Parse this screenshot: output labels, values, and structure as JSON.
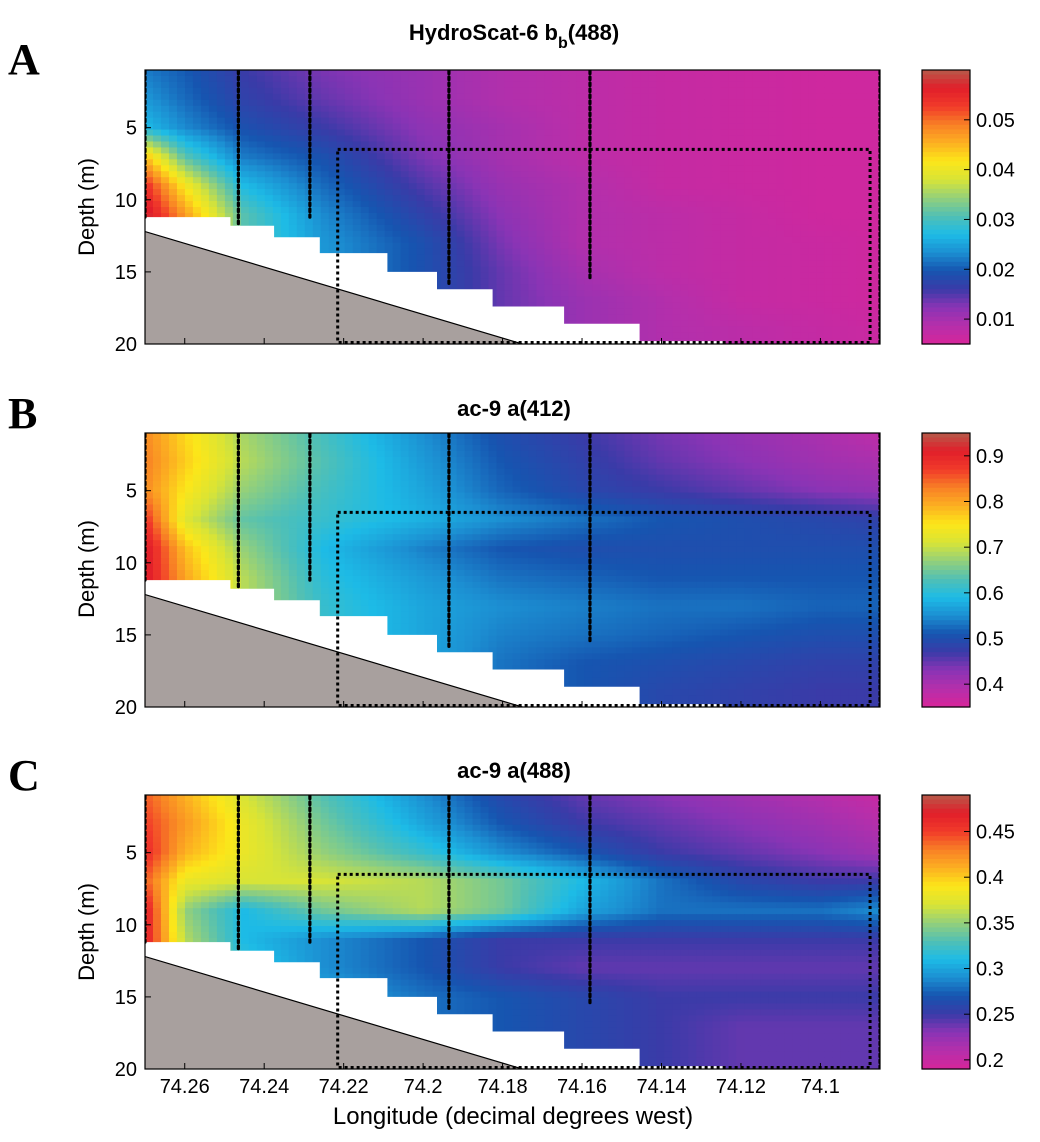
{
  "figure": {
    "xlabel": "Longitude (decimal degrees west)"
  },
  "chart_data": [
    {
      "type": "heatmap",
      "panel_label": "A",
      "title_main": "HydroScat-6   b",
      "title_sub": "b",
      "title_tail": "(488)",
      "ylabel": "Depth (m)",
      "xlabel": "",
      "xlim": [
        74.27,
        74.085
      ],
      "ylim": [
        20,
        1
      ],
      "y_ticks": [
        5,
        10,
        15,
        20
      ],
      "x_ticks": [
        74.26,
        74.24,
        74.22,
        74.2,
        74.18,
        74.16,
        74.14,
        74.12,
        74.1
      ],
      "x_tick_labels": [],
      "colorbar": {
        "range": [
          0.005,
          0.06
        ],
        "ticks": [
          0.01,
          0.02,
          0.03,
          0.04,
          0.05
        ],
        "tick_labels": [
          "0.01",
          "0.02",
          "0.03",
          "0.04",
          "0.05"
        ]
      },
      "grid_x": [
        74.27,
        74.26,
        74.245,
        74.225,
        74.2,
        74.18,
        74.16,
        74.14,
        74.12,
        74.1,
        74.085
      ],
      "grid_depth": [
        1,
        3,
        5,
        7,
        9,
        11,
        13,
        15,
        17,
        19,
        20
      ],
      "grid_values": [
        [
          0.022,
          0.02,
          0.016,
          0.013,
          0.011,
          0.009,
          0.008,
          0.007,
          0.0065,
          0.006,
          0.006
        ],
        [
          0.024,
          0.021,
          0.017,
          0.014,
          0.011,
          0.009,
          0.008,
          0.007,
          0.0065,
          0.006,
          0.006
        ],
        [
          0.027,
          0.023,
          0.019,
          0.016,
          0.012,
          0.01,
          0.008,
          0.007,
          0.0065,
          0.006,
          0.006
        ],
        [
          0.044,
          0.031,
          0.022,
          0.019,
          0.013,
          0.01,
          0.008,
          0.007,
          0.0065,
          0.006,
          0.006
        ],
        [
          0.054,
          0.041,
          0.027,
          0.021,
          0.015,
          0.011,
          0.009,
          0.007,
          0.0065,
          0.006,
          0.006
        ],
        [
          0.058,
          0.047,
          0.031,
          0.023,
          0.017,
          0.012,
          0.009,
          0.008,
          0.007,
          0.006,
          0.006
        ],
        [
          0.058,
          0.047,
          0.031,
          0.024,
          0.019,
          0.013,
          0.009,
          0.008,
          0.007,
          0.0065,
          0.006
        ],
        [
          0.058,
          0.047,
          0.031,
          0.024,
          0.019,
          0.014,
          0.01,
          0.008,
          0.007,
          0.0065,
          0.006
        ],
        [
          0.058,
          0.047,
          0.031,
          0.024,
          0.019,
          0.014,
          0.011,
          0.009,
          0.007,
          0.0065,
          0.006
        ],
        [
          0.058,
          0.047,
          0.031,
          0.024,
          0.019,
          0.014,
          0.011,
          0.009,
          0.008,
          0.007,
          0.0065
        ],
        [
          0.058,
          0.047,
          0.031,
          0.024,
          0.019,
          0.014,
          0.011,
          0.009,
          0.008,
          0.007,
          0.0065
        ]
      ]
    },
    {
      "type": "heatmap",
      "panel_label": "B",
      "title_main": "ac-9   a(412)",
      "title_sub": "",
      "title_tail": "",
      "ylabel": "Depth (m)",
      "xlabel": "",
      "xlim": [
        74.27,
        74.085
      ],
      "ylim": [
        20,
        1
      ],
      "y_ticks": [
        5,
        10,
        15,
        20
      ],
      "x_ticks": [
        74.26,
        74.24,
        74.22,
        74.2,
        74.18,
        74.16,
        74.14,
        74.12,
        74.1
      ],
      "x_tick_labels": [],
      "colorbar": {
        "range": [
          0.35,
          0.95
        ],
        "ticks": [
          0.4,
          0.5,
          0.6,
          0.7,
          0.8,
          0.9
        ],
        "tick_labels": [
          "0.4",
          "0.5",
          "0.6",
          "0.7",
          "0.8",
          "0.9"
        ]
      },
      "grid_x": [
        74.27,
        74.26,
        74.245,
        74.225,
        74.2,
        74.18,
        74.16,
        74.14,
        74.12,
        74.1,
        74.085
      ],
      "grid_depth": [
        1,
        3,
        5,
        7,
        9,
        11,
        13,
        15,
        17,
        19,
        20
      ],
      "grid_values": [
        [
          0.82,
          0.76,
          0.68,
          0.62,
          0.55,
          0.5,
          0.47,
          0.44,
          0.42,
          0.4,
          0.38
        ],
        [
          0.83,
          0.77,
          0.69,
          0.63,
          0.56,
          0.51,
          0.48,
          0.45,
          0.43,
          0.41,
          0.4
        ],
        [
          0.82,
          0.75,
          0.67,
          0.62,
          0.57,
          0.52,
          0.49,
          0.47,
          0.45,
          0.43,
          0.42
        ],
        [
          0.88,
          0.72,
          0.64,
          0.61,
          0.58,
          0.55,
          0.53,
          0.51,
          0.5,
          0.49,
          0.48
        ],
        [
          0.92,
          0.78,
          0.67,
          0.59,
          0.54,
          0.51,
          0.5,
          0.5,
          0.5,
          0.5,
          0.5
        ],
        [
          0.92,
          0.8,
          0.69,
          0.6,
          0.56,
          0.53,
          0.52,
          0.51,
          0.51,
          0.51,
          0.51
        ],
        [
          0.92,
          0.8,
          0.69,
          0.61,
          0.57,
          0.55,
          0.54,
          0.53,
          0.53,
          0.52,
          0.52
        ],
        [
          0.92,
          0.8,
          0.69,
          0.61,
          0.57,
          0.54,
          0.53,
          0.52,
          0.51,
          0.5,
          0.5
        ],
        [
          0.92,
          0.8,
          0.69,
          0.61,
          0.57,
          0.53,
          0.51,
          0.5,
          0.49,
          0.48,
          0.48
        ],
        [
          0.92,
          0.8,
          0.69,
          0.61,
          0.57,
          0.53,
          0.51,
          0.49,
          0.48,
          0.47,
          0.47
        ],
        [
          0.92,
          0.8,
          0.69,
          0.61,
          0.57,
          0.53,
          0.51,
          0.49,
          0.48,
          0.47,
          0.47
        ]
      ]
    },
    {
      "type": "heatmap",
      "panel_label": "C",
      "title_main": "ac-9   a(488)",
      "title_sub": "",
      "title_tail": "",
      "ylabel": "Depth (m)",
      "xlabel": "Longitude (decimal degrees west)",
      "xlim": [
        74.27,
        74.085
      ],
      "ylim": [
        20,
        1
      ],
      "y_ticks": [
        5,
        10,
        15,
        20
      ],
      "x_ticks": [
        74.26,
        74.24,
        74.22,
        74.2,
        74.18,
        74.16,
        74.14,
        74.12,
        74.1
      ],
      "x_tick_labels": [
        "74.26",
        "74.24",
        "74.22",
        "74.2",
        "74.18",
        "74.16",
        "74.14",
        "74.12",
        "74.1"
      ],
      "colorbar": {
        "range": [
          0.19,
          0.49
        ],
        "ticks": [
          0.2,
          0.25,
          0.3,
          0.35,
          0.4,
          0.45
        ],
        "tick_labels": [
          "0.2",
          "0.25",
          "0.3",
          "0.35",
          "0.4",
          "0.45"
        ]
      },
      "grid_x": [
        74.27,
        74.26,
        74.245,
        74.225,
        74.2,
        74.18,
        74.16,
        74.14,
        74.12,
        74.1,
        74.085
      ],
      "grid_depth": [
        1,
        3,
        5,
        7,
        9,
        11,
        13,
        15,
        17,
        19,
        20
      ],
      "grid_values": [
        [
          0.44,
          0.41,
          0.37,
          0.33,
          0.29,
          0.26,
          0.24,
          0.23,
          0.22,
          0.21,
          0.2
        ],
        [
          0.45,
          0.42,
          0.38,
          0.34,
          0.3,
          0.27,
          0.25,
          0.24,
          0.23,
          0.22,
          0.21
        ],
        [
          0.46,
          0.41,
          0.38,
          0.35,
          0.32,
          0.29,
          0.27,
          0.25,
          0.24,
          0.23,
          0.22
        ],
        [
          0.44,
          0.38,
          0.37,
          0.37,
          0.36,
          0.34,
          0.31,
          0.28,
          0.26,
          0.25,
          0.25
        ],
        [
          0.47,
          0.35,
          0.31,
          0.34,
          0.36,
          0.34,
          0.3,
          0.28,
          0.28,
          0.28,
          0.29
        ],
        [
          0.47,
          0.36,
          0.31,
          0.29,
          0.27,
          0.25,
          0.25,
          0.25,
          0.25,
          0.25,
          0.25
        ],
        [
          0.47,
          0.37,
          0.32,
          0.29,
          0.27,
          0.25,
          0.24,
          0.24,
          0.24,
          0.24,
          0.24
        ],
        [
          0.47,
          0.37,
          0.33,
          0.3,
          0.28,
          0.27,
          0.26,
          0.25,
          0.25,
          0.25,
          0.25
        ],
        [
          0.47,
          0.37,
          0.33,
          0.3,
          0.28,
          0.27,
          0.26,
          0.25,
          0.24,
          0.24,
          0.24
        ],
        [
          0.47,
          0.37,
          0.33,
          0.3,
          0.28,
          0.27,
          0.26,
          0.25,
          0.24,
          0.24,
          0.24
        ],
        [
          0.47,
          0.37,
          0.33,
          0.3,
          0.28,
          0.27,
          0.26,
          0.25,
          0.24,
          0.24,
          0.24
        ]
      ]
    }
  ],
  "overlay": {
    "station_casts": [
      {
        "lon": 74.27,
        "max_depth": 11.2
      },
      {
        "lon": 74.2465,
        "max_depth": 11.8
      },
      {
        "lon": 74.2285,
        "max_depth": 11.2
      },
      {
        "lon": 74.1935,
        "max_depth": 15.8
      },
      {
        "lon": 74.158,
        "max_depth": 15.6
      },
      {
        "lon": 74.085,
        "max_depth": 20
      }
    ],
    "dashed_box": {
      "lon_min": 74.2215,
      "lon_max": 74.0875,
      "depth_min": 6.5,
      "depth_max": 20
    },
    "bottom_line": [
      [
        74.27,
        12.2
      ],
      [
        74.175,
        20
      ]
    ],
    "nodata_steps": [
      [
        74.27,
        11.2
      ],
      [
        74.2485,
        11.2
      ],
      [
        74.2485,
        11.8
      ],
      [
        74.2375,
        11.8
      ],
      [
        74.2375,
        12.6
      ],
      [
        74.226,
        12.6
      ],
      [
        74.226,
        13.7
      ],
      [
        74.209,
        13.7
      ],
      [
        74.209,
        15.0
      ],
      [
        74.1965,
        15.0
      ],
      [
        74.1965,
        16.2
      ],
      [
        74.1825,
        16.2
      ],
      [
        74.1825,
        17.4
      ],
      [
        74.1645,
        17.4
      ],
      [
        74.1645,
        18.6
      ],
      [
        74.1455,
        18.6
      ],
      [
        74.1455,
        19.8
      ],
      [
        74.1245,
        19.8
      ],
      [
        74.1245,
        20
      ]
    ],
    "bottom_color": "#a8a09e"
  },
  "colormap": [
    "#d7259a",
    "#b52fab",
    "#8a34b5",
    "#3a3ba8",
    "#1655b0",
    "#1c8fd2",
    "#1dbbe6",
    "#52c0b4",
    "#94d07a",
    "#d8e436",
    "#fce619",
    "#fcb021",
    "#f88025",
    "#f13a2a",
    "#e11e2a",
    "#b75a4a"
  ]
}
